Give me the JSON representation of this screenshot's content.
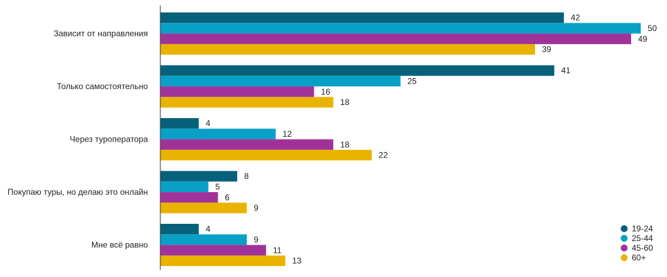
{
  "chart_data": {
    "type": "bar",
    "orientation": "horizontal",
    "categories": [
      "Зависит от направления",
      "Только самостоятельно",
      "Через туроператора",
      "Покупаю туры, но делаю это онлайн",
      "Мне всё равно"
    ],
    "series": [
      {
        "name": "19-24",
        "color": "#08617a",
        "values": [
          42,
          41,
          4,
          8,
          4
        ]
      },
      {
        "name": "25-44",
        "color": "#09a0c8",
        "values": [
          50,
          25,
          12,
          5,
          9
        ]
      },
      {
        "name": "45-60",
        "color": "#a0339a",
        "values": [
          49,
          16,
          18,
          6,
          11
        ]
      },
      {
        "name": "60+",
        "color": "#eab300",
        "values": [
          39,
          18,
          22,
          9,
          13
        ]
      }
    ],
    "title": "",
    "xlabel": "",
    "ylabel": "",
    "xlim": [
      0,
      50
    ],
    "grid": false,
    "legend_position": "bottom-right",
    "data_labels": true
  }
}
